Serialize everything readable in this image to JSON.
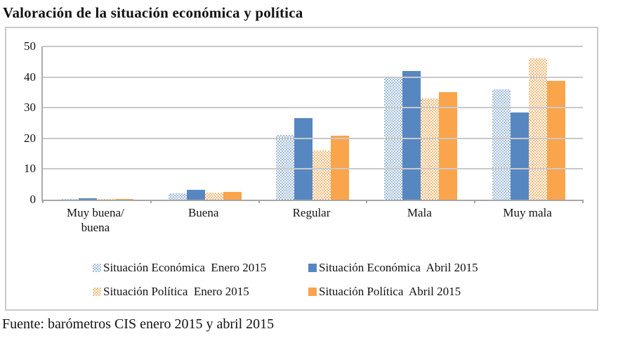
{
  "title": "Valoración de la situación económica y política",
  "source": "Fuente: barómetros CIS enero 2015 y abril 2015",
  "colors": {
    "econ_enero": "#9cbadc",
    "econ_abril": "#5787c1",
    "pol_enero": "#f7b977",
    "pol_abril": "#faa44c",
    "gridline": "#c9c9c9",
    "axis": "#a6a6a6",
    "frame_border": "#c9c9c9",
    "text": "#121212"
  },
  "chart_data": {
    "type": "bar",
    "title": "Valoración de la situación económica y política",
    "categories": [
      "Muy buena/\nbuena",
      "Buena",
      "Regular",
      "Mala",
      "Muy mala"
    ],
    "series": [
      {
        "name": "Situación Económica  Enero 2015",
        "pattern": "dotted",
        "color": "#9cbadc",
        "values": [
          0.3,
          2.0,
          21.0,
          40.0,
          36.0
        ]
      },
      {
        "name": "Situación Económica  Abril 2015",
        "pattern": "solid",
        "color": "#5787c1",
        "values": [
          0.4,
          3.2,
          26.5,
          42.0,
          28.5
        ]
      },
      {
        "name": "Situación Política  Enero 2015",
        "pattern": "dotted",
        "color": "#f7b977",
        "values": [
          0.3,
          2.2,
          16.0,
          33.0,
          46.0
        ]
      },
      {
        "name": "Situación Política  Abril 2015",
        "pattern": "solid",
        "color": "#faa44c",
        "values": [
          0.2,
          2.6,
          20.8,
          35.0,
          38.7
        ]
      }
    ],
    "xlabel": "",
    "ylabel": "",
    "ylim": [
      0,
      50
    ],
    "yticks": [
      0,
      10,
      20,
      30,
      40,
      50
    ],
    "grid": true,
    "legend_position": "bottom",
    "legend_rows": [
      [
        0,
        1
      ],
      [
        2,
        3
      ]
    ],
    "source": "Fuente: barómetros CIS enero 2015 y abril 2015"
  }
}
